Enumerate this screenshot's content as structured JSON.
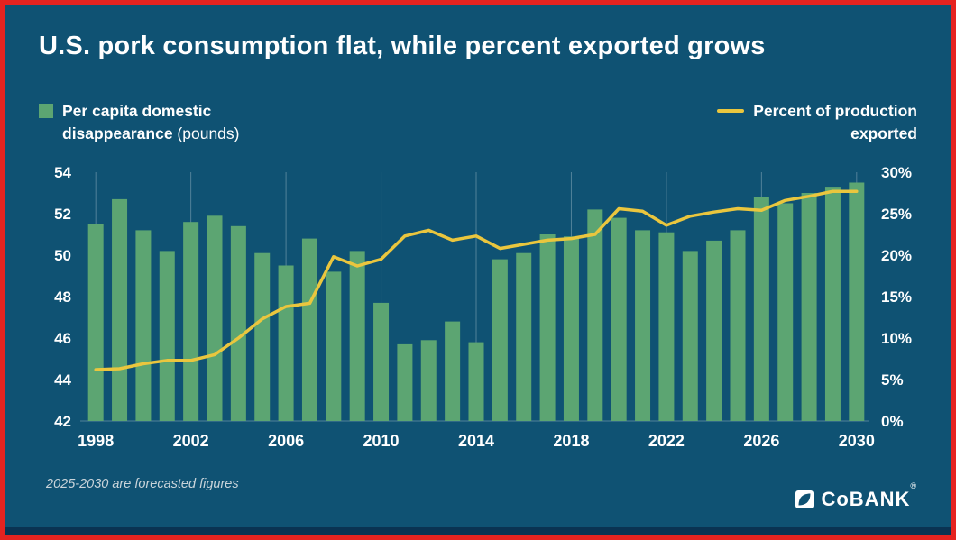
{
  "title": "U.S. pork consumption flat, while percent exported grows",
  "legend": {
    "bars": {
      "line1": "Per capita domestic",
      "line2_strong": "disappearance",
      "line2_light": " (pounds)"
    },
    "line": {
      "line1": "Percent of production",
      "line2": "exported"
    }
  },
  "footnote": "2025-2030 are forecasted figures",
  "logo": {
    "text": "CoBANK",
    "reg": "®"
  },
  "colors": {
    "background": "#0f5273",
    "frame_border": "#e52320",
    "bar": "#5ca572",
    "line": "#eac63e",
    "text": "#ffffff",
    "footnote": "#c9d4da",
    "gridline": "rgba(255,255,255,0.28)"
  },
  "chart_data": {
    "type": "bar",
    "subtype": "bar+line combo, dual axis",
    "title": "U.S. pork consumption flat, while percent exported grows",
    "categories": [
      1998,
      1999,
      2000,
      2001,
      2002,
      2003,
      2004,
      2005,
      2006,
      2007,
      2008,
      2009,
      2010,
      2011,
      2012,
      2013,
      2014,
      2015,
      2016,
      2017,
      2018,
      2019,
      2020,
      2021,
      2022,
      2023,
      2024,
      2025,
      2026,
      2027,
      2028,
      2029,
      2030
    ],
    "series": [
      {
        "name": "Per capita domestic disappearance (pounds)",
        "type": "bar",
        "axis": "left",
        "values": [
          51.5,
          52.7,
          51.2,
          50.2,
          51.6,
          51.9,
          51.4,
          50.1,
          49.5,
          50.8,
          49.2,
          50.2,
          47.7,
          45.7,
          45.9,
          46.8,
          45.8,
          49.8,
          50.1,
          51.0,
          50.9,
          52.2,
          51.8,
          51.2,
          51.1,
          50.2,
          50.7,
          51.2,
          52.8,
          52.5,
          53.0,
          53.3,
          53.5
        ]
      },
      {
        "name": "Percent of production exported",
        "type": "line",
        "axis": "right",
        "values": [
          6.2,
          6.3,
          6.9,
          7.3,
          7.3,
          8.0,
          10.0,
          12.3,
          13.8,
          14.2,
          19.8,
          18.7,
          19.5,
          22.3,
          23.0,
          21.8,
          22.3,
          20.8,
          21.3,
          21.8,
          22.0,
          22.5,
          25.6,
          25.3,
          23.6,
          24.7,
          25.2,
          25.6,
          25.4,
          26.6,
          27.1,
          27.7,
          27.7
        ]
      }
    ],
    "left_axis": {
      "min": 42,
      "max": 54,
      "ticks": [
        42,
        44,
        46,
        48,
        50,
        52,
        54
      ]
    },
    "right_axis": {
      "min": 0,
      "max": 30,
      "ticks": [
        "0%",
        "5%",
        "10%",
        "15%",
        "20%",
        "25%",
        "30%"
      ]
    },
    "x_tick_labels": [
      1998,
      2002,
      2006,
      2010,
      2014,
      2018,
      2022,
      2026,
      2030
    ],
    "grid": "vertical gridlines at labeled years only",
    "legend_position": "top (bars left, line right)",
    "note": "2025-2030 are forecasted figures"
  }
}
